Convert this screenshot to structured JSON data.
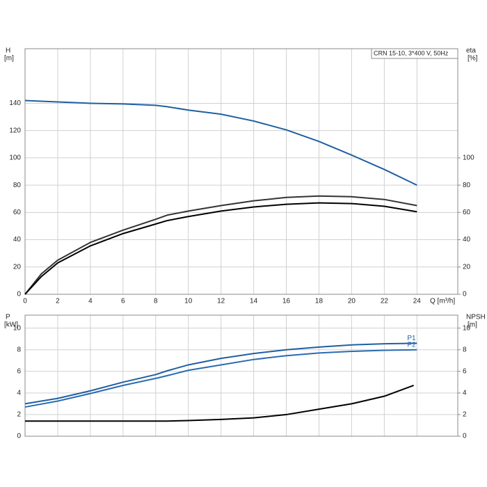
{
  "chart_data": [
    {
      "type": "line",
      "annotation": "CRN 15-10, 3*400 V, 50Hz",
      "y_label": "H",
      "y_unit": "[m]",
      "y2_label": "eta",
      "y2_unit": "[%]",
      "x_label": "Q [m³/h]",
      "xlim": [
        0,
        26.5
      ],
      "xticks": [
        0,
        2,
        4,
        6,
        8,
        10,
        12,
        14,
        16,
        18,
        20,
        22,
        24
      ],
      "ylim": [
        0,
        180
      ],
      "yticks": [
        0,
        20,
        40,
        60,
        80,
        100,
        120,
        140
      ],
      "y2lim": [
        0,
        180
      ],
      "y2ticks": [
        0,
        20,
        40,
        60,
        80,
        100
      ],
      "grid": true,
      "series": [
        {
          "color": "#1f5fa0",
          "x": [
            0,
            2,
            4,
            6,
            8,
            8.7,
            10,
            12,
            14,
            16,
            18,
            20,
            22,
            24
          ],
          "values": [
            142,
            141,
            140,
            139.5,
            138.5,
            137.5,
            135,
            132,
            127,
            120.5,
            112,
            102,
            91.5,
            80
          ]
        },
        {
          "color": "#333333",
          "axis": "y2",
          "x": [
            0,
            1,
            2,
            4,
            6,
            8,
            8.7,
            10,
            12,
            14,
            16,
            18,
            20,
            22,
            24
          ],
          "values": [
            0,
            15,
            25,
            38,
            47,
            55,
            58,
            61,
            65,
            68.5,
            71,
            72,
            71.5,
            69.5,
            65
          ]
        },
        {
          "color": "#000000",
          "axis": "y2",
          "x": [
            0,
            1,
            2,
            4,
            6,
            8,
            8.7,
            10,
            12,
            14,
            16,
            18,
            20,
            22,
            24
          ],
          "values": [
            0,
            13,
            23,
            35.5,
            44.5,
            51.5,
            54,
            57,
            61,
            64,
            66,
            67,
            66.5,
            64.5,
            60.5
          ]
        }
      ]
    },
    {
      "type": "line",
      "y_label": "P",
      "y_unit": "[kW]",
      "y2_label": "NPSH",
      "y2_unit": "[m]",
      "xlim": [
        0,
        26.5
      ],
      "xticks": [
        0,
        2,
        4,
        6,
        8,
        10,
        12,
        14,
        16,
        18,
        20,
        22,
        24
      ],
      "ylim": [
        0,
        11.2
      ],
      "yticks": [
        0,
        2,
        4,
        6,
        8,
        10
      ],
      "y2lim": [
        0,
        11.2
      ],
      "y2ticks": [
        0,
        2,
        4,
        6,
        8,
        10
      ],
      "grid": true,
      "series": [
        {
          "name": "P1",
          "color": "#1f5fa0",
          "x": [
            0,
            2,
            4,
            6,
            8,
            8.7,
            10,
            12,
            14,
            16,
            18,
            20,
            22,
            24
          ],
          "values": [
            3.0,
            3.5,
            4.2,
            5.0,
            5.7,
            6.05,
            6.6,
            7.2,
            7.65,
            8.0,
            8.25,
            8.45,
            8.55,
            8.6
          ]
        },
        {
          "name": "P2",
          "color": "#2a6bb0",
          "x": [
            0,
            2,
            4,
            6,
            8,
            8.7,
            10,
            12,
            14,
            16,
            18,
            20,
            22,
            24
          ],
          "values": [
            2.7,
            3.25,
            3.95,
            4.7,
            5.35,
            5.6,
            6.1,
            6.6,
            7.1,
            7.45,
            7.7,
            7.85,
            7.95,
            8.0
          ]
        },
        {
          "color": "#000000",
          "axis": "y2",
          "x": [
            0,
            8,
            8.7,
            10,
            12,
            14,
            16,
            18,
            20,
            22,
            23.8
          ],
          "values": [
            1.4,
            1.4,
            1.4,
            1.45,
            1.55,
            1.7,
            2.0,
            2.5,
            3.0,
            3.7,
            4.7
          ]
        }
      ]
    }
  ]
}
